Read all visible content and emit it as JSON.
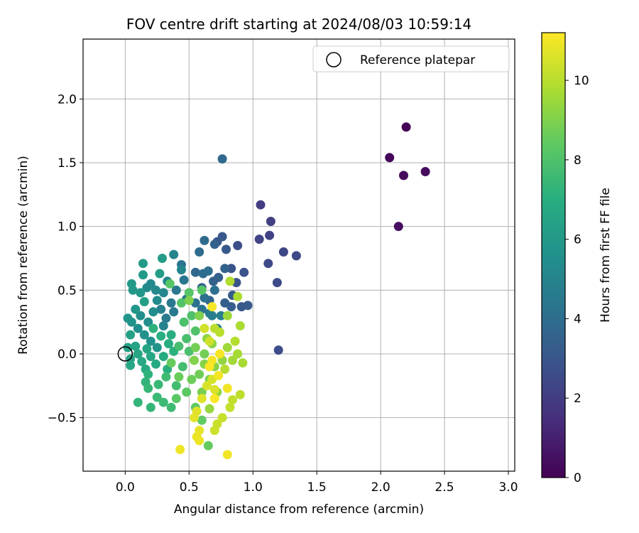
{
  "chart_data": {
    "type": "scatter",
    "title": "FOV centre drift starting at 2024/08/03 10:59:14",
    "xlabel": "Angular distance from reference (arcmin)",
    "ylabel": "Rotation from reference (arcmin)",
    "xlim": [
      -0.33,
      3.05
    ],
    "ylim": [
      -0.92,
      2.47
    ],
    "xticks": [
      0.0,
      0.5,
      1.0,
      1.5,
      2.0,
      2.5,
      3.0
    ],
    "xtick_labels": [
      "0.0",
      "0.5",
      "1.0",
      "1.5",
      "2.0",
      "2.5",
      "3.0"
    ],
    "yticks": [
      -0.5,
      0.0,
      0.5,
      1.0,
      1.5,
      2.0
    ],
    "ytick_labels": [
      "−0.5",
      "0.0",
      "0.5",
      "1.0",
      "1.5",
      "2.0"
    ],
    "grid": true,
    "legend": {
      "placement": "top-right",
      "entries": [
        "Reference platepar"
      ]
    },
    "reference_point": {
      "x": 0.0,
      "y": 0.0,
      "marker": "open-circle"
    },
    "colorbar": {
      "label": "Hours from first FF file",
      "colormap": "viridis",
      "range": [
        0,
        11.2
      ],
      "ticks": [
        0,
        2,
        4,
        6,
        8,
        10
      ],
      "tick_labels": [
        "0",
        "2",
        "4",
        "6",
        "8",
        "10"
      ]
    },
    "series_fields": [
      "x",
      "y",
      "hours"
    ],
    "points": [
      [
        2.2,
        1.78,
        0.1
      ],
      [
        2.07,
        1.54,
        0.2
      ],
      [
        2.18,
        1.4,
        0.3
      ],
      [
        2.35,
        1.43,
        0.35
      ],
      [
        2.14,
        1.0,
        0.45
      ],
      [
        1.06,
        1.17,
        2.0
      ],
      [
        1.14,
        1.04,
        2.1
      ],
      [
        1.13,
        0.93,
        2.2
      ],
      [
        1.05,
        0.9,
        2.3
      ],
      [
        1.24,
        0.8,
        2.4
      ],
      [
        1.34,
        0.77,
        2.45
      ],
      [
        1.12,
        0.71,
        2.5
      ],
      [
        1.19,
        0.56,
        2.55
      ],
      [
        1.2,
        0.03,
        2.6
      ],
      [
        0.88,
        0.85,
        2.7
      ],
      [
        0.93,
        0.64,
        2.8
      ],
      [
        0.87,
        0.56,
        2.85
      ],
      [
        0.83,
        0.67,
        2.9
      ],
      [
        0.76,
        0.92,
        3.0
      ],
      [
        0.72,
        0.88,
        3.05
      ],
      [
        0.79,
        0.82,
        3.1
      ],
      [
        0.91,
        0.37,
        3.15
      ],
      [
        0.96,
        0.38,
        3.2
      ],
      [
        0.84,
        0.46,
        3.25
      ],
      [
        0.83,
        0.37,
        3.3
      ],
      [
        0.78,
        0.4,
        3.35
      ],
      [
        0.73,
        0.6,
        3.4
      ],
      [
        0.69,
        0.57,
        3.45
      ],
      [
        0.7,
        0.86,
        3.5
      ],
      [
        0.78,
        0.67,
        3.55
      ],
      [
        0.6,
        0.52,
        3.6
      ],
      [
        0.66,
        0.42,
        3.65
      ],
      [
        0.55,
        0.64,
        3.7
      ],
      [
        0.76,
        1.53,
        3.8
      ],
      [
        0.62,
        0.89,
        3.9
      ],
      [
        0.58,
        0.8,
        3.95
      ],
      [
        0.61,
        0.63,
        4.0
      ],
      [
        0.65,
        0.65,
        4.05
      ],
      [
        0.7,
        0.5,
        4.1
      ],
      [
        0.62,
        0.44,
        4.15
      ],
      [
        0.55,
        0.4,
        4.2
      ],
      [
        0.48,
        0.43,
        4.25
      ],
      [
        0.6,
        0.35,
        4.3
      ],
      [
        0.44,
        0.7,
        4.35
      ],
      [
        0.46,
        0.58,
        4.4
      ],
      [
        0.4,
        0.5,
        4.45
      ],
      [
        0.36,
        0.4,
        4.5
      ],
      [
        0.38,
        0.33,
        4.55
      ],
      [
        0.32,
        0.28,
        4.6
      ],
      [
        0.66,
        0.32,
        4.65
      ],
      [
        0.72,
        0.2,
        4.7
      ],
      [
        0.68,
        0.3,
        4.75
      ],
      [
        0.75,
        0.3,
        4.8
      ],
      [
        0.28,
        0.35,
        4.85
      ],
      [
        0.3,
        0.22,
        4.9
      ],
      [
        0.38,
        0.78,
        5.0
      ],
      [
        0.44,
        0.66,
        5.05
      ],
      [
        0.33,
        0.57,
        5.1
      ],
      [
        0.3,
        0.48,
        5.15
      ],
      [
        0.24,
        0.5,
        5.2
      ],
      [
        0.2,
        0.55,
        5.25
      ],
      [
        0.17,
        0.52,
        5.3
      ],
      [
        0.25,
        0.42,
        5.35
      ],
      [
        0.22,
        0.33,
        5.4
      ],
      [
        0.18,
        0.25,
        5.45
      ],
      [
        0.12,
        0.3,
        5.5
      ],
      [
        0.1,
        0.2,
        5.55
      ],
      [
        0.15,
        0.15,
        5.6
      ],
      [
        0.2,
        0.1,
        5.65
      ],
      [
        0.25,
        0.05,
        5.7
      ],
      [
        0.05,
        0.25,
        5.75
      ],
      [
        0.02,
        0.28,
        5.8
      ],
      [
        0.08,
        0.35,
        5.85
      ],
      [
        0.12,
        0.48,
        5.9
      ],
      [
        0.06,
        0.5,
        5.95
      ],
      [
        0.05,
        0.55,
        6.0
      ],
      [
        0.14,
        0.62,
        6.05
      ],
      [
        0.14,
        0.71,
        6.1
      ],
      [
        0.29,
        0.75,
        6.15
      ],
      [
        0.27,
        0.63,
        6.2
      ],
      [
        0.15,
        0.41,
        6.25
      ],
      [
        0.04,
        0.15,
        6.3
      ],
      [
        0.02,
        0.05,
        6.35
      ],
      [
        0.04,
        -0.04,
        6.4
      ],
      [
        0.08,
        0.06,
        6.45
      ],
      [
        0.1,
        0.0,
        6.5
      ],
      [
        0.17,
        0.04,
        6.55
      ],
      [
        0.2,
        -0.02,
        6.6
      ],
      [
        0.04,
        -0.09,
        6.65
      ],
      [
        0.13,
        -0.06,
        6.7
      ],
      [
        0.16,
        -0.12,
        6.75
      ],
      [
        0.24,
        -0.08,
        6.8
      ],
      [
        0.3,
        -0.02,
        6.85
      ],
      [
        0.34,
        0.08,
        6.9
      ],
      [
        0.36,
        0.15,
        6.95
      ],
      [
        0.28,
        0.14,
        7.0
      ],
      [
        0.33,
        -0.12,
        7.05
      ],
      [
        0.38,
        0.02,
        7.1
      ],
      [
        0.22,
        0.2,
        7.15
      ],
      [
        0.18,
        -0.16,
        7.2
      ],
      [
        0.16,
        -0.22,
        7.25
      ],
      [
        0.1,
        -0.38,
        7.3
      ],
      [
        0.2,
        -0.42,
        7.35
      ],
      [
        0.18,
        -0.27,
        7.4
      ],
      [
        0.26,
        -0.24,
        7.45
      ],
      [
        0.25,
        -0.34,
        7.5
      ],
      [
        0.3,
        -0.38,
        7.55
      ],
      [
        0.36,
        -0.42,
        7.6
      ],
      [
        0.32,
        -0.18,
        7.65
      ],
      [
        0.4,
        -0.25,
        7.7
      ],
      [
        0.45,
        -0.1,
        7.75
      ],
      [
        0.42,
        0.06,
        7.8
      ],
      [
        0.48,
        0.12,
        7.85
      ],
      [
        0.5,
        0.02,
        7.9
      ],
      [
        0.46,
        0.25,
        7.95
      ],
      [
        0.52,
        0.3,
        8.0
      ],
      [
        0.55,
        0.18,
        8.05
      ],
      [
        0.44,
        0.4,
        8.1
      ],
      [
        0.5,
        0.48,
        8.15
      ],
      [
        0.35,
        0.55,
        8.2
      ],
      [
        0.6,
        0.5,
        8.25
      ],
      [
        0.4,
        -0.35,
        8.3
      ],
      [
        0.48,
        -0.3,
        8.35
      ],
      [
        0.55,
        -0.42,
        8.4
      ],
      [
        0.6,
        -0.52,
        8.45
      ],
      [
        0.65,
        -0.72,
        8.5
      ],
      [
        0.36,
        -0.07,
        8.55
      ],
      [
        0.42,
        -0.18,
        8.6
      ],
      [
        0.52,
        -0.2,
        8.65
      ],
      [
        0.58,
        -0.16,
        8.7
      ],
      [
        0.62,
        0.0,
        8.75
      ],
      [
        0.55,
        0.05,
        8.8
      ],
      [
        0.6,
        -0.3,
        8.85
      ],
      [
        0.66,
        -0.2,
        8.9
      ],
      [
        0.5,
        0.42,
        8.95
      ],
      [
        0.58,
        0.3,
        9.0
      ],
      [
        0.54,
        -0.05,
        9.05
      ],
      [
        0.62,
        -0.08,
        9.1
      ],
      [
        0.7,
        -0.1,
        9.15
      ],
      [
        0.68,
        0.08,
        9.2
      ],
      [
        0.64,
        0.12,
        9.25
      ],
      [
        0.76,
        -0.05,
        9.3
      ],
      [
        0.72,
        -0.3,
        9.35
      ],
      [
        0.66,
        -0.43,
        9.4
      ],
      [
        0.8,
        0.3,
        9.5
      ],
      [
        0.8,
        0.05,
        9.55
      ],
      [
        0.84,
        -0.05,
        9.6
      ],
      [
        0.88,
        0.0,
        9.65
      ],
      [
        0.92,
        -0.07,
        9.7
      ],
      [
        0.9,
        0.22,
        9.75
      ],
      [
        0.88,
        0.45,
        9.8
      ],
      [
        0.82,
        0.57,
        9.85
      ],
      [
        0.86,
        0.1,
        9.9
      ],
      [
        0.78,
        -0.12,
        9.95
      ],
      [
        0.74,
        0.17,
        10.0
      ],
      [
        0.7,
        0.2,
        10.05
      ],
      [
        0.9,
        -0.32,
        10.1
      ],
      [
        0.84,
        -0.36,
        10.15
      ],
      [
        0.82,
        -0.42,
        10.2
      ],
      [
        0.76,
        -0.5,
        10.25
      ],
      [
        0.72,
        -0.55,
        10.3
      ],
      [
        0.7,
        -0.6,
        10.35
      ],
      [
        0.66,
        0.1,
        10.4
      ],
      [
        0.62,
        0.2,
        10.45
      ],
      [
        0.68,
        -0.2,
        10.5
      ],
      [
        0.64,
        -0.25,
        10.55
      ],
      [
        0.7,
        -0.28,
        10.6
      ],
      [
        0.6,
        -0.35,
        10.65
      ],
      [
        0.56,
        -0.45,
        10.7
      ],
      [
        0.54,
        -0.5,
        10.75
      ],
      [
        0.58,
        -0.6,
        10.8
      ],
      [
        0.56,
        -0.65,
        10.85
      ],
      [
        0.58,
        -0.68,
        10.9
      ],
      [
        0.43,
        -0.75,
        10.95
      ],
      [
        0.8,
        -0.79,
        11.0
      ],
      [
        0.8,
        -0.27,
        11.0
      ],
      [
        0.68,
        -0.05,
        11.05
      ],
      [
        0.73,
        -0.17,
        11.05
      ],
      [
        0.68,
        0.37,
        11.1
      ],
      [
        0.74,
        0.0,
        11.1
      ],
      [
        0.66,
        -0.1,
        11.15
      ],
      [
        0.7,
        -0.35,
        11.15
      ]
    ]
  }
}
